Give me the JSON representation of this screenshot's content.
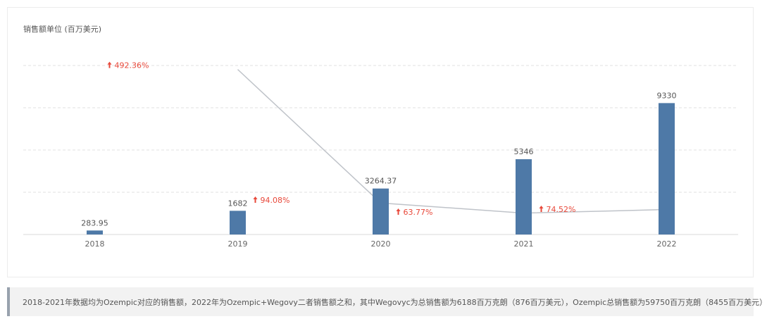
{
  "chart_data": {
    "type": "bar",
    "title": "销售额单位 (百万美元)",
    "categories": [
      "2018",
      "2019",
      "2020",
      "2021",
      "2022"
    ],
    "values": [
      283.95,
      1682,
      3264.37,
      5346,
      9330
    ],
    "value_labels": [
      "283.95",
      "1682",
      "3264.37",
      "5346",
      "9330"
    ],
    "growth_labels": [
      "492.36%",
      "94.08%",
      "63.77%",
      "74.52%"
    ],
    "growth_values": [
      492.36,
      94.08,
      63.77,
      74.52
    ],
    "bar_color": "#4e79a7",
    "line_color": "#bfc3c9",
    "growth_color": "#e8483a",
    "grid": true
  },
  "footnote": "2018-2021年数据均为Ozempic对应的销售额，2022年为Ozempic+Wegovy二者销售额之和，其中Wegovyc为总销售额为6188百万克朗（876百万美元），Ozempic总销售额为59750百万克朗（8455百万美元）"
}
